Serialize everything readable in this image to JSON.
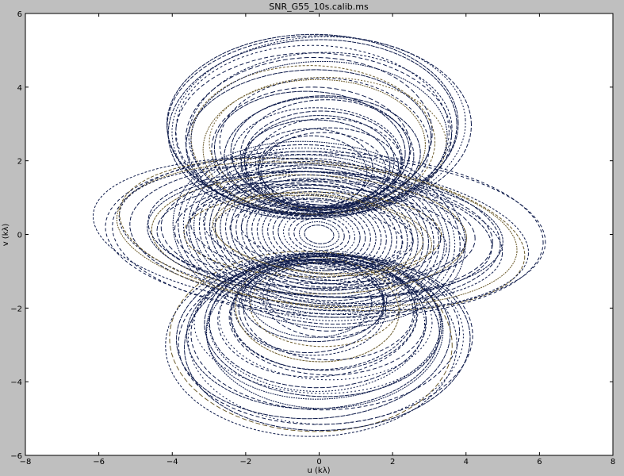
{
  "chart_data": {
    "type": "scatter",
    "title": "SNR_G55_10s.calib.ms",
    "xlabel": "u (kλ)",
    "ylabel": "v (kλ)",
    "xlim": [
      -8,
      8
    ],
    "ylim": [
      -6,
      6
    ],
    "x_ticks": [
      -8,
      -6,
      -4,
      -2,
      0,
      2,
      4,
      6,
      8
    ],
    "y_ticks": [
      -6,
      -4,
      -2,
      0,
      2,
      4,
      6
    ],
    "grid": false,
    "colors": {
      "figure_background": "#bfbfbf",
      "plot_background": "#ffffff",
      "points": "#0d1a4a",
      "points_secondary": "#6b5a2a"
    },
    "description_of_coverage": "",
    "series": [
      {
        "values_note": "",
        "point_shape": "dot",
        "tracks": [
          {
            "center_x": 0.0,
            "center_y": 3.0,
            "semi_major": 4.3,
            "semi_minor": 2.6,
            "count": 28,
            "sample": [
              [
                -4.1,
                4.2
              ],
              [
                0.0,
                5.5
              ],
              [
                4.1,
                4.2
              ],
              [
                0.0,
                0.8
              ]
            ]
          },
          {
            "center_x": 0.0,
            "center_y": -3.0,
            "semi_major": 4.3,
            "semi_minor": 2.6,
            "count": 28,
            "sample": [
              [
                -4.1,
                -4.2
              ],
              [
                0.0,
                -5.5
              ],
              [
                4.1,
                -4.2
              ],
              [
                0.0,
                -0.8
              ]
            ]
          },
          {
            "center_x": 0.0,
            "center_y": 0.0,
            "semi_major": 6.3,
            "semi_minor": 2.3,
            "count": 22,
            "sample": [
              [
                -6.2,
                0.0
              ],
              [
                6.2,
                0.0
              ],
              [
                0.0,
                2.2
              ],
              [
                0.0,
                -2.2
              ]
            ]
          }
        ]
      }
    ]
  }
}
